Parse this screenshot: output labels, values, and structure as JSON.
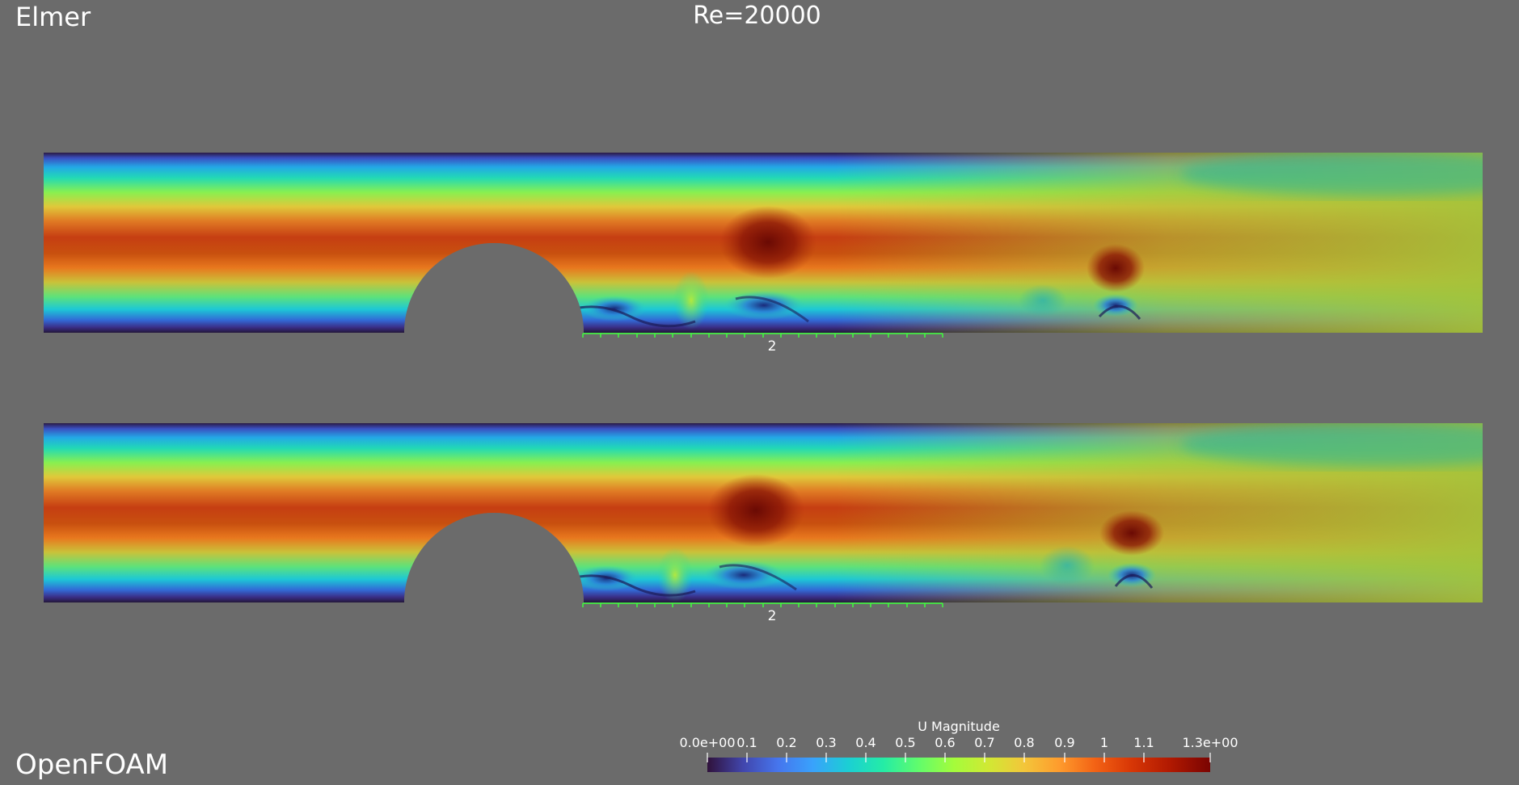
{
  "labels": {
    "solver_top": "Elmer",
    "title": "Re=20000",
    "solver_bottom": "OpenFOAM"
  },
  "panels": [
    {
      "name": "elmer",
      "scale_label": "2"
    },
    {
      "name": "openfoam",
      "scale_label": "2"
    }
  ],
  "colorbar": {
    "title": "U Magnitude",
    "ticks": [
      "0.0e+00",
      "0.1",
      "0.2",
      "0.3",
      "0.4",
      "0.5",
      "0.6",
      "0.7",
      "0.8",
      "0.9",
      "1",
      "1.1",
      "1.3e+00"
    ],
    "colormap": "turbo"
  },
  "colors": {
    "background": "#6b6b6b",
    "scale_bar": "#3cff3c"
  }
}
